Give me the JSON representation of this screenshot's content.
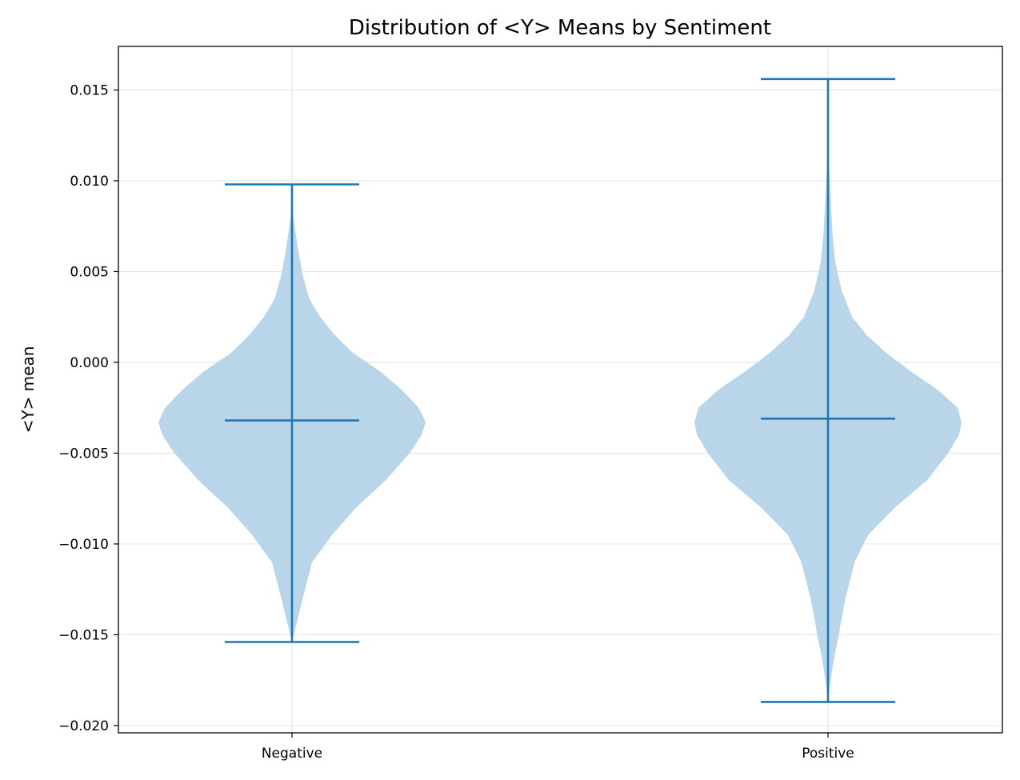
{
  "chart_data": {
    "type": "violin",
    "title": "Distribution of <Y> Means by Sentiment",
    "xlabel": "",
    "ylabel": "<Y> mean",
    "ylim": [
      -0.0204,
      0.0174
    ],
    "grid": true,
    "categories": [
      "Negative",
      "Positive"
    ],
    "y_ticks": [
      0.015,
      0.01,
      0.005,
      0.0,
      -0.005,
      -0.01,
      -0.015,
      -0.02
    ],
    "y_tick_labels": [
      "0.015",
      "0.010",
      "0.005",
      "0.000",
      "−0.005",
      "−0.010",
      "−0.015",
      "−0.020"
    ],
    "colors": {
      "body": "#b9d5e9",
      "line": "#1f77b4"
    },
    "series": [
      {
        "category": "Negative",
        "min": -0.0154,
        "max": 0.0098,
        "mean": -0.0032,
        "density": [
          [
            -0.0154,
            0.0
          ],
          [
            -0.0145,
            0.03
          ],
          [
            -0.013,
            0.08
          ],
          [
            -0.011,
            0.15
          ],
          [
            -0.0095,
            0.3
          ],
          [
            -0.008,
            0.48
          ],
          [
            -0.0065,
            0.7
          ],
          [
            -0.005,
            0.88
          ],
          [
            -0.004,
            0.97
          ],
          [
            -0.0033,
            1.0
          ],
          [
            -0.0025,
            0.95
          ],
          [
            -0.0015,
            0.82
          ],
          [
            -0.0005,
            0.66
          ],
          [
            0.0005,
            0.46
          ],
          [
            0.0015,
            0.32
          ],
          [
            0.0025,
            0.21
          ],
          [
            0.0035,
            0.13
          ],
          [
            0.0048,
            0.08
          ],
          [
            0.006,
            0.05
          ],
          [
            0.0072,
            0.025
          ],
          [
            0.008,
            0.01
          ],
          [
            0.0085,
            0.0
          ]
        ]
      },
      {
        "category": "Positive",
        "min": -0.0187,
        "max": 0.0156,
        "mean": -0.0031,
        "density": [
          [
            -0.0187,
            0.0
          ],
          [
            -0.018,
            0.01
          ],
          [
            -0.0165,
            0.04
          ],
          [
            -0.015,
            0.08
          ],
          [
            -0.013,
            0.13
          ],
          [
            -0.011,
            0.2
          ],
          [
            -0.0095,
            0.3
          ],
          [
            -0.008,
            0.5
          ],
          [
            -0.0065,
            0.74
          ],
          [
            -0.005,
            0.9
          ],
          [
            -0.004,
            0.98
          ],
          [
            -0.0033,
            1.0
          ],
          [
            -0.0025,
            0.97
          ],
          [
            -0.0015,
            0.82
          ],
          [
            -0.0005,
            0.62
          ],
          [
            0.0005,
            0.44
          ],
          [
            0.0015,
            0.29
          ],
          [
            0.0025,
            0.18
          ],
          [
            0.004,
            0.1
          ],
          [
            0.0055,
            0.055
          ],
          [
            0.007,
            0.035
          ],
          [
            0.009,
            0.02
          ],
          [
            0.011,
            0.008
          ],
          [
            0.013,
            0.0
          ]
        ]
      }
    ]
  }
}
